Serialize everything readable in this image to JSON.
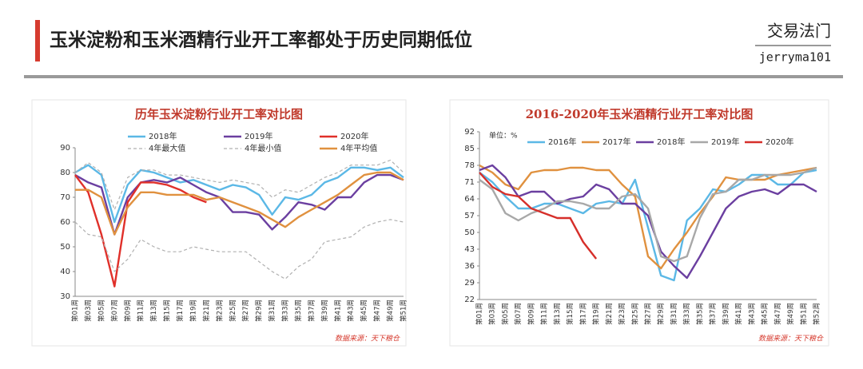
{
  "header": {
    "title": "玉米淀粉和玉米酒精行业开工率都处于历史同期低位",
    "brand": "交易法门",
    "account": "jerryma101"
  },
  "chart_data": [
    {
      "type": "line",
      "title": "历年玉米淀粉行业开工率对比图",
      "source": "数据来源：天下粮仓",
      "categories": [
        "第01周",
        "第03周",
        "第05周",
        "第07周",
        "第09周",
        "第11周",
        "第13周",
        "第15周",
        "第17周",
        "第19周",
        "第21周",
        "第23周",
        "第25周",
        "第27周",
        "第29周",
        "第31周",
        "第33周",
        "第35周",
        "第37周",
        "第39周",
        "第41周",
        "第43周",
        "第45周",
        "第47周",
        "第49周",
        "第51周"
      ],
      "ylim": [
        30,
        90
      ],
      "yticks": [
        30,
        40,
        50,
        60,
        70,
        80,
        90
      ],
      "series": [
        {
          "name": "2018年",
          "color": "#5bb8e6",
          "values": [
            80,
            83,
            79,
            60,
            75,
            81,
            80,
            78,
            76,
            77,
            75,
            73,
            75,
            74,
            71,
            63,
            70,
            69,
            71,
            76,
            78,
            82,
            82,
            81,
            82,
            78
          ]
        },
        {
          "name": "2019年",
          "color": "#6b3fa0",
          "values": [
            79,
            76,
            74,
            55,
            70,
            76,
            77,
            76,
            78,
            75,
            72,
            70,
            64,
            64,
            63,
            57,
            62,
            68,
            67,
            65,
            70,
            70,
            76,
            79,
            79,
            77
          ]
        },
        {
          "name": "2020年",
          "color": "#e0302a",
          "values": [
            79,
            72,
            55,
            34,
            68,
            76,
            76,
            75,
            73,
            70,
            68,
            null,
            null,
            null,
            null,
            null,
            null,
            null,
            null,
            null,
            null,
            null,
            null,
            null,
            null,
            null
          ]
        },
        {
          "name": "4年最大值",
          "color": "#b0b0b0",
          "dashed": true,
          "values": [
            80,
            84,
            80,
            65,
            78,
            81,
            81,
            79,
            79,
            78,
            77,
            76,
            77,
            76,
            75,
            70,
            73,
            72,
            75,
            78,
            80,
            83,
            83,
            83,
            85,
            80
          ]
        },
        {
          "name": "4年最小值",
          "color": "#b0b0b0",
          "dashed": true,
          "values": [
            60,
            55,
            54,
            40,
            45,
            53,
            50,
            48,
            48,
            50,
            49,
            48,
            48,
            48,
            44,
            40,
            37,
            42,
            45,
            52,
            53,
            54,
            58,
            60,
            61,
            60
          ]
        },
        {
          "name": "4年平均值",
          "color": "#e0913f",
          "values": [
            73,
            73,
            70,
            55,
            66,
            72,
            72,
            71,
            71,
            71,
            69,
            70,
            68,
            66,
            64,
            61,
            58,
            62,
            65,
            68,
            71,
            75,
            79,
            80,
            80,
            77
          ]
        }
      ]
    },
    {
      "type": "line",
      "title": "2016-2020年玉米酒精行业开工率对比图",
      "source": "数据来源：天下粮仓",
      "unit_label": "单位：%",
      "categories": [
        "第01周",
        "第03周",
        "第05周",
        "第07周",
        "第09周",
        "第11周",
        "第13周",
        "第15周",
        "第17周",
        "第19周",
        "第21周",
        "第23周",
        "第25周",
        "第27周",
        "第29周",
        "第31周",
        "第33周",
        "第35周",
        "第37周",
        "第39周",
        "第41周",
        "第43周",
        "第45周",
        "第47周",
        "第49周",
        "第51周",
        "第52周"
      ],
      "ylim": [
        22,
        92
      ],
      "yticks": [
        22,
        29,
        36,
        43,
        50,
        57,
        64,
        71,
        78,
        85,
        92
      ],
      "series": [
        {
          "name": "2016年",
          "color": "#5bb8e6",
          "values": [
            75,
            71,
            65,
            60,
            60,
            62,
            62,
            60,
            58,
            62,
            63,
            62,
            72,
            52,
            32,
            30,
            55,
            60,
            68,
            67,
            70,
            74,
            74,
            70,
            70,
            75,
            76
          ]
        },
        {
          "name": "2017年",
          "color": "#e0913f",
          "values": [
            78,
            75,
            70,
            68,
            75,
            76,
            76,
            77,
            77,
            76,
            76,
            70,
            65,
            40,
            35,
            43,
            50,
            58,
            65,
            73,
            72,
            72,
            72,
            74,
            75,
            76,
            77
          ]
        },
        {
          "name": "2018年",
          "color": "#6b3fa0",
          "values": [
            76,
            78,
            73,
            65,
            67,
            67,
            62,
            64,
            65,
            70,
            68,
            62,
            62,
            57,
            42,
            36,
            31,
            40,
            50,
            60,
            65,
            67,
            68,
            66,
            70,
            70,
            67
          ]
        },
        {
          "name": "2019年",
          "color": "#a8a8a8",
          "values": [
            72,
            68,
            58,
            55,
            58,
            60,
            63,
            63,
            62,
            60,
            60,
            65,
            66,
            60,
            40,
            38,
            40,
            56,
            66,
            67,
            72,
            72,
            74,
            74,
            74,
            75,
            77
          ]
        },
        {
          "name": "2020年",
          "color": "#d62f2a",
          "values": [
            75,
            69,
            66,
            65,
            60,
            58,
            56,
            56,
            46,
            39,
            null,
            null,
            null,
            null,
            null,
            null,
            null,
            null,
            null,
            null,
            null,
            null,
            null,
            null,
            null,
            null,
            null
          ]
        }
      ]
    }
  ]
}
